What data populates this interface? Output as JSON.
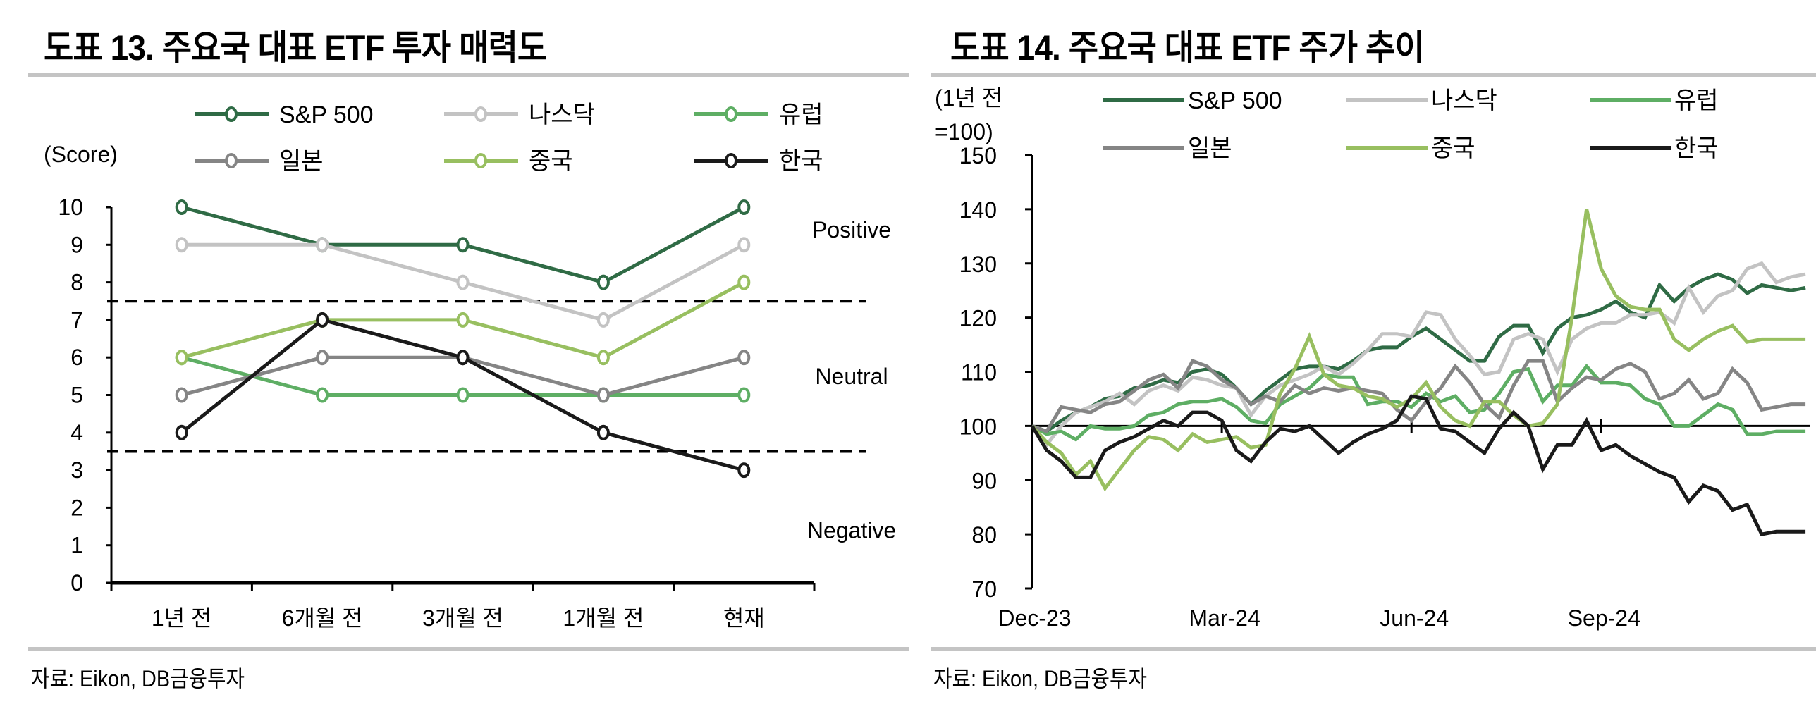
{
  "figures": [
    {
      "title": "도표 13. 주요국 대표 ETF 투자 매력도",
      "source": "자료: Eikon, DB금융투자"
    },
    {
      "title": "도표 14. 주요국 대표 ETF 주가 추이",
      "source": "자료: Eikon, DB금융투자"
    }
  ],
  "chart_data": [
    {
      "type": "line",
      "title": "도표 13. 주요국 대표 ETF 투자 매력도",
      "ylabel": "(Score)",
      "xlabel": "",
      "categories": [
        "1년 전",
        "6개월 전",
        "3개월 전",
        "1개월 전",
        "현재"
      ],
      "ylim": [
        0,
        10
      ],
      "yticks": [
        0,
        1,
        2,
        3,
        4,
        5,
        6,
        7,
        8,
        9,
        10
      ],
      "markers": "hollow-circle",
      "series": [
        {
          "name": "S&P 500",
          "color": "#2f6b45",
          "values": [
            10,
            9,
            9,
            8,
            10
          ]
        },
        {
          "name": "나스닥",
          "color": "#c3c3c3",
          "values": [
            9,
            9,
            8,
            7,
            9
          ]
        },
        {
          "name": "유럽",
          "color": "#5eae64",
          "values": [
            6,
            5,
            5,
            5,
            5
          ]
        },
        {
          "name": "일본",
          "color": "#858585",
          "values": [
            5,
            6,
            6,
            5,
            6
          ]
        },
        {
          "name": "중국",
          "color": "#98bf60",
          "values": [
            6,
            7,
            7,
            6,
            8
          ]
        },
        {
          "name": "한국",
          "color": "#1a1a1a",
          "values": [
            4,
            7,
            6,
            4,
            3
          ]
        }
      ],
      "reference_lines": [
        {
          "value": 7.5,
          "style": "dashed"
        },
        {
          "value": 3.5,
          "style": "dashed"
        }
      ],
      "zone_labels": [
        {
          "text": "Positive",
          "value": 9.4
        },
        {
          "text": "Neutral",
          "value": 5.5
        },
        {
          "text": "Negative",
          "value": 1.4
        }
      ],
      "legend": "top",
      "grid": false
    },
    {
      "type": "line",
      "title": "도표 14. 주요국 대표 ETF 주가 추이",
      "ylabel": "(1년 전 =100)",
      "ylabel_lines": [
        "(1년 전",
        "=100)"
      ],
      "xlabel": "",
      "x_tick_labels": [
        "Dec-23",
        "Mar-24",
        "Jun-24",
        "Sep-24"
      ],
      "x_tick_index": [
        0,
        13,
        26,
        39
      ],
      "frequency": "weekly",
      "ylim": [
        70,
        150
      ],
      "yticks": [
        70,
        80,
        90,
        100,
        110,
        120,
        130,
        140,
        150
      ],
      "baseline": 100,
      "legend": "top",
      "grid": false,
      "series": [
        {
          "name": "S&P 500",
          "color": "#2f6b45",
          "values": [
            100,
            99.0,
            101.0,
            102.5,
            103.5,
            105.0,
            105.5,
            107.0,
            107.5,
            108.5,
            108.0,
            110.0,
            110.5,
            109.5,
            107.0,
            104.0,
            106.5,
            108.5,
            110.5,
            111.0,
            111.0,
            110.5,
            112.0,
            114.0,
            114.5,
            114.5,
            116.5,
            118.0,
            116.0,
            114.0,
            112.0,
            112.0,
            116.5,
            118.5,
            118.5,
            113.5,
            118.0,
            120.0,
            120.5,
            121.5,
            123.0,
            121.0,
            120.0,
            126.0,
            123.0,
            125.5,
            127.0,
            128.0,
            127.0,
            124.5,
            126.0,
            125.5,
            125.0,
            125.5
          ]
        },
        {
          "name": "나스닥",
          "color": "#c3c3c3",
          "values": [
            100,
            96.5,
            100.0,
            102.5,
            103.5,
            104.5,
            106.0,
            104.0,
            106.5,
            107.5,
            106.5,
            109.0,
            108.5,
            107.5,
            107.0,
            102.0,
            105.5,
            107.5,
            108.5,
            109.5,
            111.0,
            109.5,
            111.5,
            114.0,
            117.0,
            117.0,
            116.5,
            121.0,
            120.5,
            116.0,
            113.0,
            109.5,
            110.0,
            116.0,
            117.0,
            116.0,
            110.0,
            116.0,
            118.0,
            119.0,
            119.0,
            120.5,
            120.5,
            121.0,
            119.0,
            125.5,
            121.0,
            124.0,
            125.0,
            129.0,
            130.0,
            126.5,
            127.5,
            128.0
          ]
        },
        {
          "name": "유럽",
          "color": "#5eae64",
          "values": [
            100,
            98.5,
            99.0,
            97.5,
            100.0,
            99.5,
            99.5,
            100.0,
            102.0,
            102.5,
            104.0,
            104.5,
            104.5,
            105.0,
            103.5,
            101.0,
            100.5,
            104.0,
            105.5,
            107.0,
            109.5,
            109.0,
            109.0,
            104.0,
            104.5,
            104.5,
            103.5,
            106.0,
            104.5,
            105.5,
            102.5,
            103.0,
            106.0,
            110.0,
            110.5,
            104.5,
            107.5,
            107.5,
            111.0,
            108.0,
            108.0,
            107.5,
            105.0,
            104.0,
            100.0,
            100.0,
            102.0,
            104.0,
            103.0,
            98.5,
            98.5,
            99.0,
            99.0,
            99.0
          ]
        },
        {
          "name": "일본",
          "color": "#858585",
          "values": [
            100,
            99.0,
            103.5,
            103.0,
            102.5,
            104.0,
            104.5,
            106.5,
            108.5,
            109.5,
            107.0,
            112.0,
            111.0,
            108.5,
            107.0,
            104.0,
            105.5,
            104.5,
            107.5,
            106.0,
            107.0,
            106.5,
            107.0,
            106.5,
            106.0,
            103.0,
            101.0,
            104.5,
            107.0,
            111.0,
            108.0,
            104.0,
            101.5,
            107.5,
            112.0,
            112.0,
            104.5,
            107.0,
            109.0,
            108.5,
            110.5,
            111.5,
            110.0,
            105.0,
            106.0,
            108.5,
            105.0,
            106.0,
            110.5,
            108.0,
            103.0,
            103.5,
            104.0,
            104.0
          ]
        },
        {
          "name": "중국",
          "color": "#98bf60",
          "values": [
            100,
            97.0,
            95.0,
            91.0,
            93.5,
            88.5,
            92.0,
            95.5,
            98.0,
            97.5,
            95.5,
            98.5,
            97.0,
            97.5,
            98.0,
            96.0,
            96.5,
            106.0,
            110.5,
            116.5,
            109.5,
            107.5,
            107.0,
            105.5,
            105.0,
            103.5,
            105.0,
            108.0,
            103.5,
            101.0,
            100.0,
            104.5,
            104.5,
            102.0,
            100.0,
            100.5,
            104.0,
            120.0,
            140.0,
            129.0,
            124.0,
            122.0,
            121.5,
            121.5,
            116.0,
            114.0,
            116.0,
            117.5,
            118.5,
            115.5,
            116.0,
            116.0,
            116.0,
            116.0
          ]
        },
        {
          "name": "한국",
          "color": "#1a1a1a",
          "values": [
            100,
            95.5,
            93.5,
            90.5,
            90.5,
            95.5,
            97.0,
            98.0,
            99.5,
            101.0,
            100.0,
            102.5,
            102.5,
            101.0,
            95.5,
            93.5,
            97.0,
            99.5,
            99.0,
            100.0,
            97.5,
            95.0,
            97.0,
            98.5,
            99.5,
            101.0,
            105.5,
            105.0,
            99.5,
            99.0,
            97.0,
            95.0,
            99.5,
            102.5,
            100.0,
            92.0,
            96.5,
            96.5,
            101.0,
            95.5,
            96.5,
            94.5,
            93.0,
            91.5,
            90.5,
            86.0,
            89.0,
            88.0,
            84.5,
            85.5,
            80.0,
            80.5,
            80.5,
            80.5
          ]
        }
      ]
    }
  ]
}
